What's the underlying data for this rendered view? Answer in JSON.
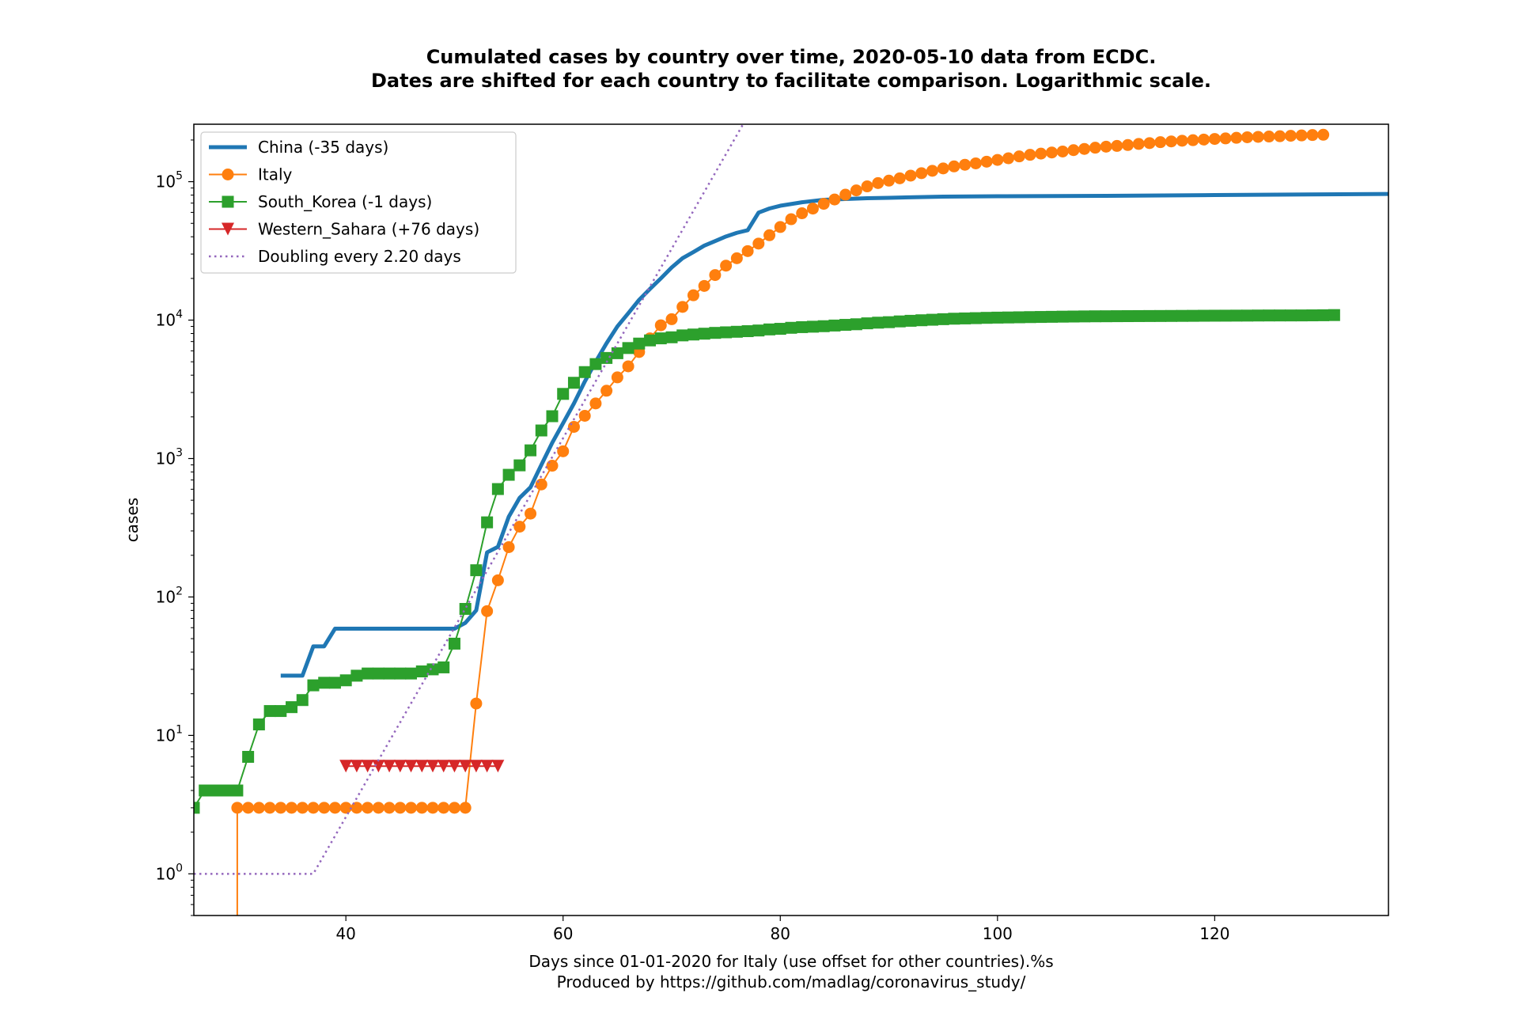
{
  "chart_data": {
    "type": "line",
    "title": "Cumulated cases by country over time, 2020-05-10 data from ECDC.",
    "subtitle": "Dates are shifted for each country to facilitate comparison. Logarithmic scale.",
    "xlabel": "Days since 01-01-2020 for Italy (use offset for other countries).%s",
    "xlabel2": "Produced by https://github.com/madlag/coronavirus_study/",
    "ylabel": "cases",
    "xlim": [
      26,
      136
    ],
    "ylim": [
      0.5,
      260000
    ],
    "yscale": "log",
    "grid": false,
    "legend_position": "top-left",
    "x_ticks": [
      40,
      60,
      80,
      100,
      120
    ],
    "y_ticks": [
      {
        "value": 1,
        "base": "10",
        "exp": "0"
      },
      {
        "value": 10,
        "base": "10",
        "exp": "1"
      },
      {
        "value": 100,
        "base": "10",
        "exp": "2"
      },
      {
        "value": 1000,
        "base": "10",
        "exp": "3"
      },
      {
        "value": 10000,
        "base": "10",
        "exp": "4"
      },
      {
        "value": 100000,
        "base": "10",
        "exp": "5"
      }
    ],
    "series": [
      {
        "name": "China (-35 days)",
        "color": "#1f77b4",
        "marker": "none",
        "x": [
          34,
          35,
          36,
          37,
          38,
          39,
          40,
          41,
          42,
          43,
          44,
          45,
          46,
          47,
          48,
          49,
          50,
          51,
          52,
          53,
          54,
          55,
          56,
          57,
          58,
          59,
          60,
          61,
          62,
          63,
          64,
          65,
          66,
          67,
          68,
          69,
          70,
          71,
          72,
          73,
          74,
          75,
          76,
          77,
          78,
          79,
          80,
          82,
          84,
          86,
          88,
          90,
          95,
          100,
          110,
          120,
          130,
          136
        ],
        "y": [
          27,
          27,
          27,
          44,
          44,
          59,
          59,
          59,
          59,
          59,
          59,
          59,
          59,
          59,
          59,
          59,
          59,
          65,
          80,
          210,
          230,
          380,
          520,
          620,
          900,
          1300,
          1800,
          2500,
          3600,
          5000,
          6800,
          9000,
          11200,
          14000,
          16800,
          20000,
          24000,
          28000,
          31000,
          34500,
          37200,
          40200,
          42700,
          44600,
          59800,
          64000,
          67000,
          71000,
          74000,
          75000,
          76000,
          76500,
          78000,
          78500,
          79000,
          80000,
          81000,
          81500
        ]
      },
      {
        "name": "Italy",
        "color": "#ff7f0e",
        "marker": "circle",
        "x": [
          30,
          31,
          32,
          33,
          34,
          35,
          36,
          37,
          38,
          39,
          40,
          41,
          42,
          43,
          44,
          45,
          46,
          47,
          48,
          49,
          50,
          51,
          52,
          53,
          54,
          55,
          56,
          57,
          58,
          59,
          60,
          61,
          62,
          63,
          64,
          65,
          66,
          67,
          68,
          69,
          70,
          71,
          72,
          73,
          74,
          75,
          76,
          77,
          78,
          79,
          80,
          81,
          82,
          83,
          84,
          85,
          86,
          87,
          88,
          89,
          90,
          91,
          92,
          93,
          94,
          95,
          96,
          97,
          98,
          99,
          100,
          101,
          102,
          103,
          104,
          105,
          106,
          107,
          108,
          109,
          110,
          111,
          112,
          113,
          114,
          115,
          116,
          117,
          118,
          119,
          120,
          121,
          122,
          123,
          124,
          125,
          126,
          127,
          128,
          129,
          130
        ],
        "y": [
          3,
          3,
          3,
          3,
          3,
          3,
          3,
          3,
          3,
          3,
          3,
          3,
          3,
          3,
          3,
          3,
          3,
          3,
          3,
          3,
          3,
          3,
          17,
          79,
          132,
          229,
          322,
          400,
          650,
          888,
          1128,
          1694,
          2036,
          2502,
          3089,
          3858,
          4636,
          5883,
          7375,
          9172,
          10149,
          12462,
          15113,
          17660,
          21157,
          24747,
          27980,
          31506,
          35713,
          41035,
          47021,
          53578,
          59138,
          63927,
          69176,
          74386,
          80539,
          86498,
          92472,
          97689,
          101739,
          105792,
          110574,
          115242,
          119827,
          124632,
          128948,
          132547,
          135586,
          139422,
          143626,
          147577,
          152271,
          156363,
          159516,
          162488,
          165155,
          168941,
          172434,
          175925,
          178972,
          181228,
          183957,
          187327,
          189973,
          192994,
          195351,
          197675,
          199414,
          201505,
          203591,
          205463,
          207428,
          209328,
          210717,
          211938,
          213013,
          214457,
          215858,
          217185,
          218268
        ]
      },
      {
        "name": "South_Korea (-1 days)",
        "color": "#2ca02c",
        "marker": "square",
        "x": [
          26,
          27,
          28,
          29,
          30,
          31,
          32,
          33,
          34,
          35,
          36,
          37,
          38,
          39,
          40,
          41,
          42,
          43,
          44,
          45,
          46,
          47,
          48,
          49,
          50,
          51,
          52,
          53,
          54,
          55,
          56,
          57,
          58,
          59,
          60,
          61,
          62,
          63,
          64,
          65,
          66,
          67,
          68,
          69,
          70,
          71,
          72,
          73,
          74,
          75,
          76,
          77,
          78,
          79,
          80,
          81,
          82,
          83,
          84,
          85,
          86,
          87,
          88,
          89,
          90,
          91,
          92,
          93,
          94,
          95,
          96,
          97,
          98,
          99,
          100,
          101,
          102,
          103,
          104,
          105,
          106,
          107,
          108,
          109,
          110,
          111,
          112,
          113,
          114,
          115,
          116,
          117,
          118,
          119,
          120,
          121,
          122,
          123,
          124,
          125,
          126,
          127,
          128,
          129,
          130,
          131
        ],
        "y": [
          3,
          4,
          4,
          4,
          4,
          7,
          12,
          15,
          15,
          16,
          18,
          23,
          24,
          24,
          25,
          27,
          28,
          28,
          28,
          28,
          28,
          29,
          30,
          31,
          46,
          82,
          156,
          346,
          602,
          763,
          893,
          1146,
          1595,
          2022,
          2931,
          3526,
          4212,
          4812,
          5328,
          5766,
          6284,
          6767,
          7134,
          7382,
          7513,
          7755,
          7869,
          7979,
          8086,
          8162,
          8236,
          8320,
          8413,
          8565,
          8652,
          8799,
          8897,
          8961,
          9037,
          9137,
          9241,
          9332,
          9478,
          9583,
          9661,
          9786,
          9887,
          9976,
          10062,
          10156,
          10237,
          10284,
          10331,
          10384,
          10423,
          10450,
          10480,
          10512,
          10537,
          10564,
          10591,
          10613,
          10635,
          10653,
          10661,
          10674,
          10683,
          10694,
          10702,
          10708,
          10718,
          10728,
          10738,
          10752,
          10761,
          10765,
          10774,
          10780,
          10793,
          10801,
          10804,
          10806,
          10810,
          10822,
          10840,
          10874
        ]
      },
      {
        "name": "Western_Sahara (+76 days)",
        "color": "#d62728",
        "marker": "triangle-down",
        "x": [
          40,
          41,
          42,
          43,
          44,
          45,
          46,
          47,
          48,
          49,
          50,
          51,
          52,
          53,
          54
        ],
        "y": [
          6,
          6,
          6,
          6,
          6,
          6,
          6,
          6,
          6,
          6,
          6,
          6,
          6,
          6,
          6
        ]
      },
      {
        "name": "Doubling every 2.20 days",
        "color": "#9467bd",
        "marker": "none",
        "dotted": true,
        "doubling_days": 2.2,
        "start_day": 37,
        "flat_from": 26
      }
    ]
  }
}
